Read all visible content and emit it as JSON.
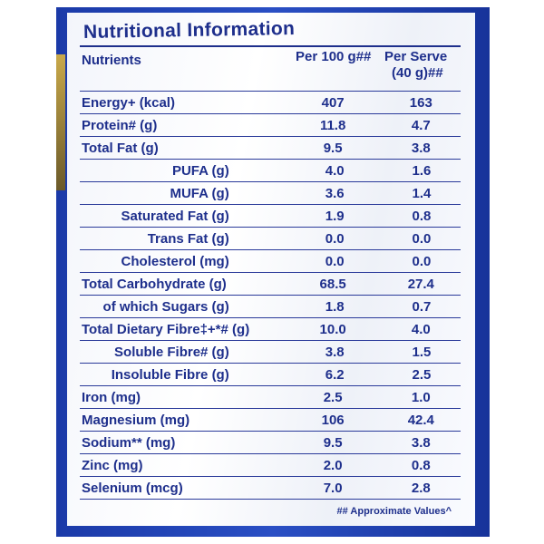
{
  "title": "Nutritional Information",
  "headers": {
    "nutrients": "Nutrients",
    "per100": "Per 100 g##",
    "perServe": "Per Serve",
    "perServeSize": "(40 g)##"
  },
  "rows": [
    {
      "name": "Energy+ (kcal)",
      "per100": "407",
      "perServe": "163",
      "sub": false
    },
    {
      "name": "Protein# (g)",
      "per100": "11.8",
      "perServe": "4.7",
      "sub": false
    },
    {
      "name": "Total Fat (g)",
      "per100": "9.5",
      "perServe": "3.8",
      "sub": false
    },
    {
      "name": "PUFA (g)",
      "per100": "4.0",
      "perServe": "1.6",
      "sub": true
    },
    {
      "name": "MUFA (g)",
      "per100": "3.6",
      "perServe": "1.4",
      "sub": true
    },
    {
      "name": "Saturated Fat (g)",
      "per100": "1.9",
      "perServe": "0.8",
      "sub": true
    },
    {
      "name": "Trans Fat (g)",
      "per100": "0.0",
      "perServe": "0.0",
      "sub": true
    },
    {
      "name": "Cholesterol (mg)",
      "per100": "0.0",
      "perServe": "0.0",
      "sub": true
    },
    {
      "name": "Total Carbohydrate (g)",
      "per100": "68.5",
      "perServe": "27.4",
      "sub": false
    },
    {
      "name": "of which Sugars (g)",
      "per100": "1.8",
      "perServe": "0.7",
      "sub": true
    },
    {
      "name": "Total Dietary Fibre‡+*# (g)",
      "per100": "10.0",
      "perServe": "4.0",
      "sub": false
    },
    {
      "name": "Soluble Fibre# (g)",
      "per100": "3.8",
      "perServe": "1.5",
      "sub": true
    },
    {
      "name": "Insoluble Fibre (g)",
      "per100": "6.2",
      "perServe": "2.5",
      "sub": true
    },
    {
      "name": "Iron (mg)",
      "per100": "2.5",
      "perServe": "1.0",
      "sub": false
    },
    {
      "name": "Magnesium (mg)",
      "per100": "106",
      "perServe": "42.4",
      "sub": false
    },
    {
      "name": "Sodium** (mg)",
      "per100": "9.5",
      "perServe": "3.8",
      "sub": false
    },
    {
      "name": "Zinc (mg)",
      "per100": "2.0",
      "perServe": "0.8",
      "sub": false
    },
    {
      "name": "Selenium (mcg)",
      "per100": "7.0",
      "perServe": "2.8",
      "sub": false
    }
  ],
  "footnote": "## Approximate Values^",
  "colors": {
    "text": "#1e2f8c",
    "pack": "#2a4fc4"
  }
}
